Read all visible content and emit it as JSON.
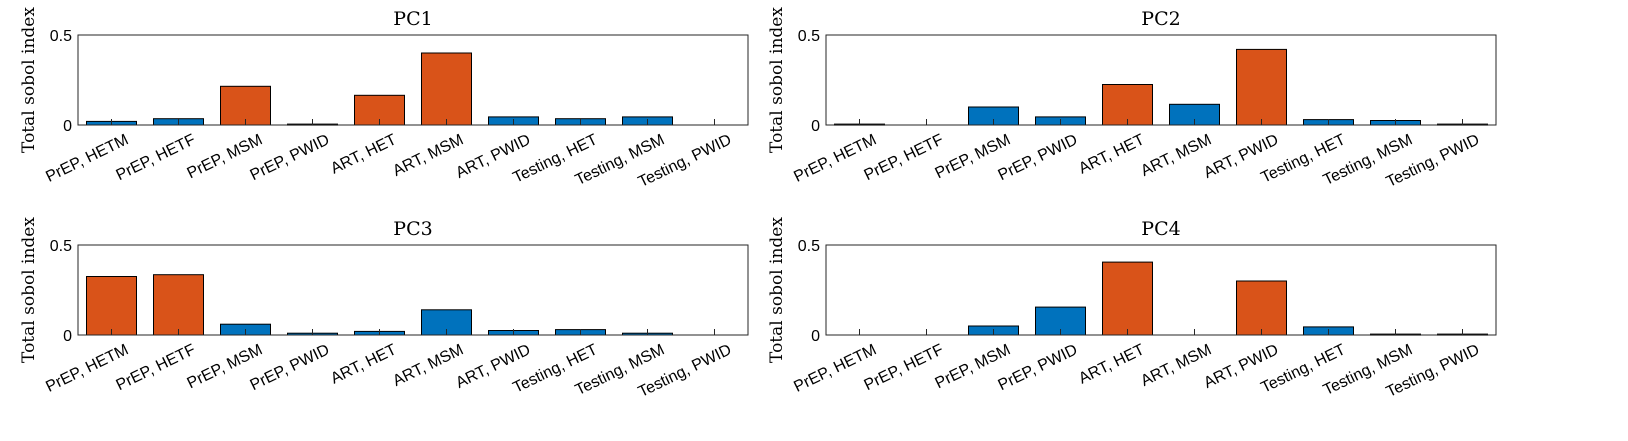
{
  "colors": {
    "blue": "#0072BD",
    "orange": "#D95319"
  },
  "chart_data": [
    {
      "type": "bar",
      "title": "PC1",
      "ylabel": "Total sobol index",
      "ylim": [
        0,
        0.5
      ],
      "yticks": [
        "0",
        "0.5"
      ],
      "categories": [
        "PrEP, HETM",
        "PrEP, HETF",
        "PrEP, MSM",
        "PrEP, PWID",
        "ART, HET",
        "ART, MSM",
        "ART, PWID",
        "Testing, HET",
        "Testing, MSM",
        "Testing, PWID"
      ],
      "values": [
        0.02,
        0.035,
        0.215,
        0.005,
        0.165,
        0.4,
        0.045,
        0.035,
        0.045,
        0.0
      ],
      "bar_colors": [
        "blue",
        "blue",
        "orange",
        "blue",
        "orange",
        "orange",
        "blue",
        "blue",
        "blue",
        "blue"
      ]
    },
    {
      "type": "bar",
      "title": "PC2",
      "ylabel": "Total sobol index",
      "ylim": [
        0,
        0.5
      ],
      "yticks": [
        "0",
        "0.5"
      ],
      "categories": [
        "PrEP, HETM",
        "PrEP, HETF",
        "PrEP, MSM",
        "PrEP, PWID",
        "ART, HET",
        "ART, MSM",
        "ART, PWID",
        "Testing, HET",
        "Testing, MSM",
        "Testing, PWID"
      ],
      "values": [
        0.005,
        0.0,
        0.1,
        0.045,
        0.225,
        0.115,
        0.42,
        0.03,
        0.025,
        0.005
      ],
      "bar_colors": [
        "blue",
        "blue",
        "blue",
        "blue",
        "orange",
        "blue",
        "orange",
        "blue",
        "blue",
        "blue"
      ]
    },
    {
      "type": "bar",
      "title": "PC3",
      "ylabel": "Total sobol index",
      "ylim": [
        0,
        0.5
      ],
      "yticks": [
        "0",
        "0.5"
      ],
      "categories": [
        "PrEP, HETM",
        "PrEP, HETF",
        "PrEP, MSM",
        "PrEP, PWID",
        "ART, HET",
        "ART, MSM",
        "ART, PWID",
        "Testing, HET",
        "Testing, MSM",
        "Testing, PWID"
      ],
      "values": [
        0.325,
        0.335,
        0.06,
        0.01,
        0.02,
        0.14,
        0.025,
        0.03,
        0.01,
        0.0
      ],
      "bar_colors": [
        "orange",
        "orange",
        "blue",
        "blue",
        "blue",
        "blue",
        "blue",
        "blue",
        "blue",
        "blue"
      ]
    },
    {
      "type": "bar",
      "title": "PC4",
      "ylabel": "Total sobol index",
      "ylim": [
        0,
        0.5
      ],
      "yticks": [
        "0",
        "0.5"
      ],
      "categories": [
        "PrEP, HETM",
        "PrEP, HETF",
        "PrEP, MSM",
        "PrEP, PWID",
        "ART, HET",
        "ART, MSM",
        "ART, PWID",
        "Testing, HET",
        "Testing, MSM",
        "Testing, PWID"
      ],
      "values": [
        0.0,
        0.0,
        0.05,
        0.155,
        0.405,
        0.0,
        0.3,
        0.045,
        0.005,
        0.005
      ],
      "bar_colors": [
        "blue",
        "blue",
        "blue",
        "blue",
        "orange",
        "blue",
        "orange",
        "blue",
        "blue",
        "blue"
      ]
    }
  ]
}
